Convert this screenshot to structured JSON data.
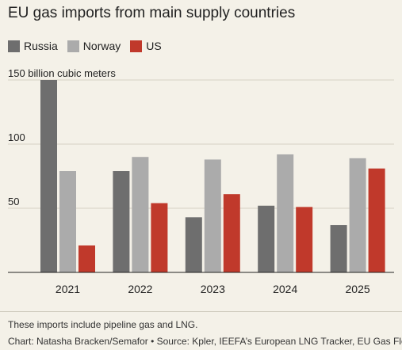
{
  "title": "EU gas imports from main supply countries",
  "note": "These imports include pipeline gas and LNG.",
  "credit": "Chart: Natasha Bracken/Semafor • Source: Kpler, IEEFA’s European LNG Tracker, EU Gas Flows",
  "chart_data": {
    "type": "bar",
    "title": "EU gas imports from main supply countries",
    "ylabel": "",
    "y_unit_label": "150 billion cubic meters",
    "ylim": [
      0,
      150
    ],
    "yticks": [
      50,
      100
    ],
    "grid": true,
    "legend_position": "top-left",
    "categories": [
      "2021",
      "2022",
      "2023",
      "2024",
      "2025"
    ],
    "series": [
      {
        "name": "Russia",
        "color": "#6e6e6e",
        "values": [
          150,
          79,
          43,
          52,
          37
        ]
      },
      {
        "name": "Norway",
        "color": "#ababab",
        "values": [
          79,
          90,
          88,
          92,
          89
        ]
      },
      {
        "name": "US",
        "color": "#c0392b",
        "values": [
          21,
          54,
          61,
          51,
          81
        ]
      }
    ]
  }
}
